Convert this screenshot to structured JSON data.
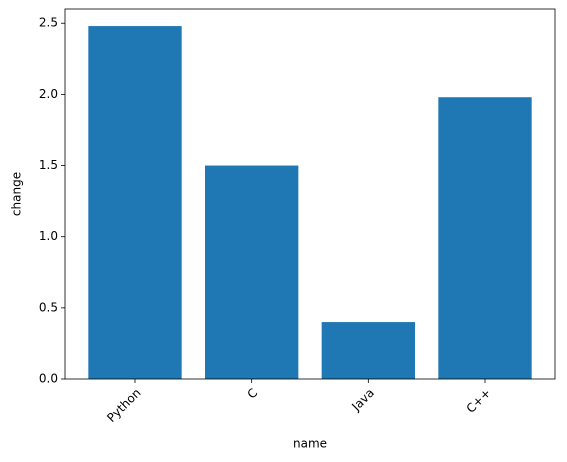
{
  "chart_data": {
    "type": "bar",
    "x_label": "name",
    "y_label": "change",
    "categories": [
      "Python",
      "C",
      "Java",
      "C++"
    ],
    "values": [
      2.48,
      1.5,
      0.4,
      1.98
    ],
    "color": "#1f77b4",
    "ylim": [
      0,
      2.6
    ],
    "yticks": [
      {
        "value": 0,
        "label": "0.0"
      },
      0.5,
      {
        "value": 1,
        "label": "1.0"
      },
      1.5,
      {
        "value": 2,
        "label": "2.0"
      },
      2.5
    ],
    "grid": false
  }
}
